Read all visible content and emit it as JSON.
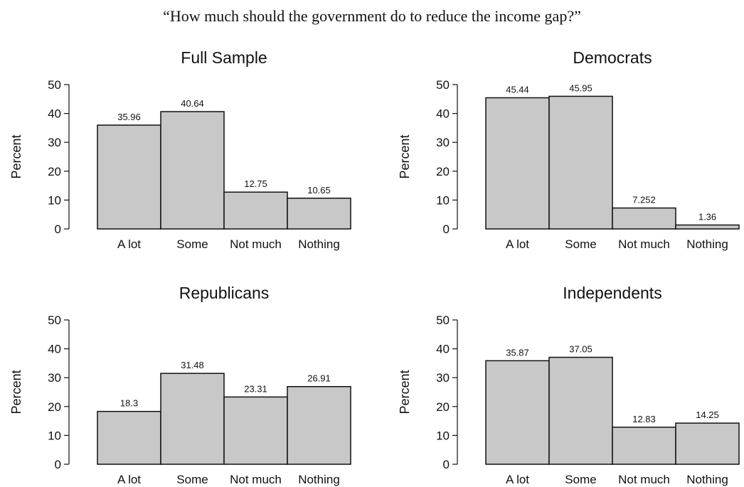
{
  "title": "“How much should the government do to reduce the income gap?”",
  "colors": {
    "bar_fill": "#c8c8c8",
    "bar_stroke": "#111111",
    "axis": "#111111"
  },
  "chart_data": [
    {
      "type": "bar",
      "title": "Full Sample",
      "ylabel": "Percent",
      "categories": [
        "A lot",
        "Some",
        "Not much",
        "Nothing"
      ],
      "values": [
        35.96,
        40.64,
        12.75,
        10.65
      ],
      "value_labels": [
        "35.96",
        "40.64",
        "12.75",
        "10.65"
      ],
      "ylim": [
        0,
        50
      ],
      "yticks": [
        0,
        10,
        20,
        30,
        40,
        50
      ]
    },
    {
      "type": "bar",
      "title": "Democrats",
      "ylabel": "Percent",
      "categories": [
        "A lot",
        "Some",
        "Not much",
        "Nothing"
      ],
      "values": [
        45.44,
        45.95,
        7.252,
        1.36
      ],
      "value_labels": [
        "45.44",
        "45.95",
        "7.252",
        "1.36"
      ],
      "ylim": [
        0,
        50
      ],
      "yticks": [
        0,
        10,
        20,
        30,
        40,
        50
      ]
    },
    {
      "type": "bar",
      "title": "Republicans",
      "ylabel": "Percent",
      "categories": [
        "A lot",
        "Some",
        "Not much",
        "Nothing"
      ],
      "values": [
        18.3,
        31.48,
        23.31,
        26.91
      ],
      "value_labels": [
        "18.3",
        "31.48",
        "23.31",
        "26.91"
      ],
      "ylim": [
        0,
        50
      ],
      "yticks": [
        0,
        10,
        20,
        30,
        40,
        50
      ]
    },
    {
      "type": "bar",
      "title": "Independents",
      "ylabel": "Percent",
      "categories": [
        "A lot",
        "Some",
        "Not much",
        "Nothing"
      ],
      "values": [
        35.87,
        37.05,
        12.83,
        14.25
      ],
      "value_labels": [
        "35.87",
        "37.05",
        "12.83",
        "14.25"
      ],
      "ylim": [
        0,
        50
      ],
      "yticks": [
        0,
        10,
        20,
        30,
        40,
        50
      ]
    }
  ]
}
